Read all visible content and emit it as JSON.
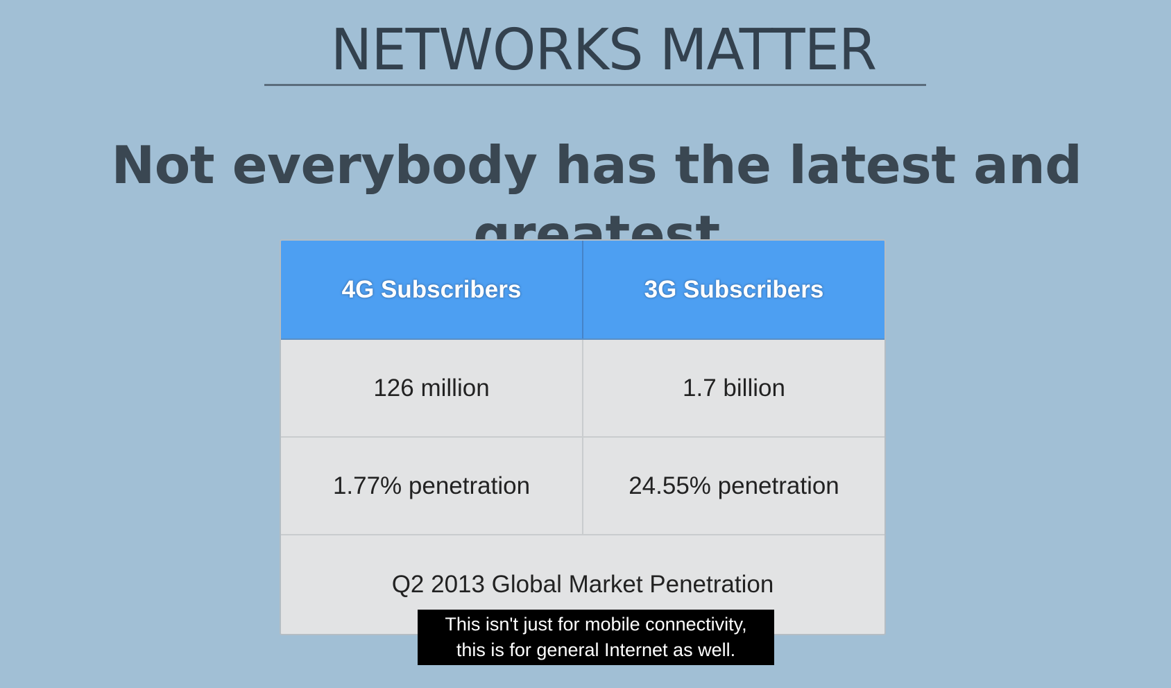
{
  "slide": {
    "title": "NETWORKS MATTER",
    "subtitle": "Not everybody has the latest and greatest"
  },
  "table": {
    "headers": [
      "4G Subscribers",
      "3G Subscribers"
    ],
    "rows": [
      [
        "126 million",
        "1.7 billion"
      ],
      [
        "1.77% penetration",
        "24.55% penetration"
      ]
    ],
    "footer": "Q2 2013 Global Market Penetration",
    "colors": {
      "header_bg": "#4d9ff2",
      "body_bg": "#e2e3e4"
    }
  },
  "caption": {
    "lines": [
      "This isn't just for mobile connectivity,",
      "this is for general Internet as well."
    ]
  },
  "colors": {
    "background": "#a1bfd5",
    "title_text": "#33414e"
  }
}
